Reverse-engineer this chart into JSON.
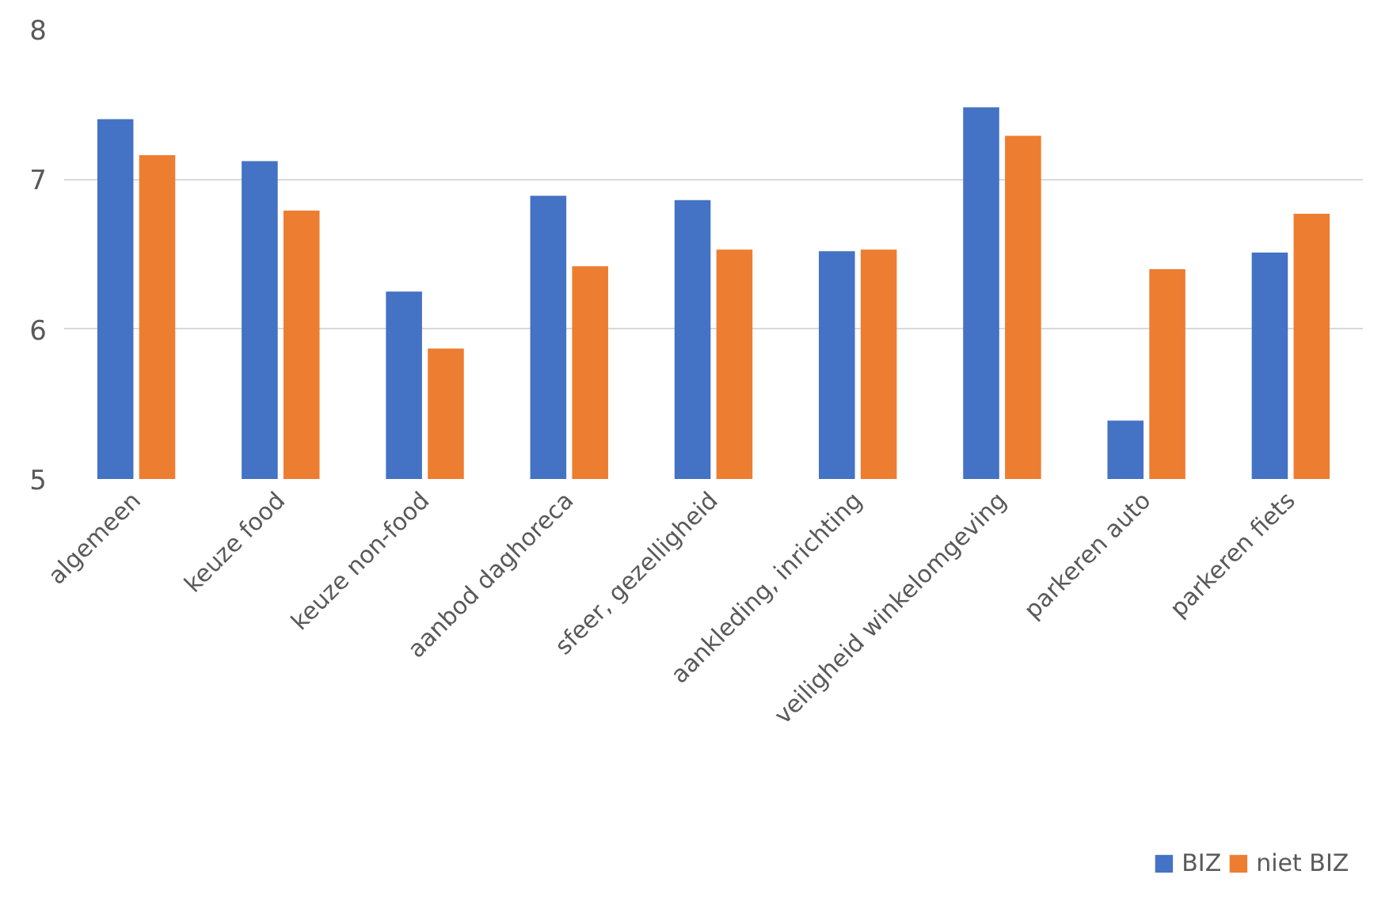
{
  "chart_data": {
    "type": "bar",
    "categories": [
      "algemeen",
      "keuze food",
      "keuze non-food",
      "aanbod daghoreca",
      "sfeer, gezelligheid",
      "aankleding, inrichting",
      "veiligheid winkelomgeving",
      "parkeren auto",
      "parkeren fiets"
    ],
    "series": [
      {
        "name": "BIZ",
        "color": "#4472c4",
        "values": [
          7.4,
          7.12,
          6.25,
          6.89,
          6.86,
          6.52,
          7.48,
          5.39,
          6.51
        ]
      },
      {
        "name": "niet BIZ",
        "color": "#ed7d31",
        "values": [
          7.16,
          6.79,
          5.87,
          6.42,
          6.53,
          6.53,
          7.29,
          6.4,
          6.77
        ]
      }
    ],
    "ylim": [
      5,
      8
    ],
    "yticks": [
      5,
      6,
      7,
      8
    ],
    "grid": "y",
    "legend": "bottom"
  }
}
